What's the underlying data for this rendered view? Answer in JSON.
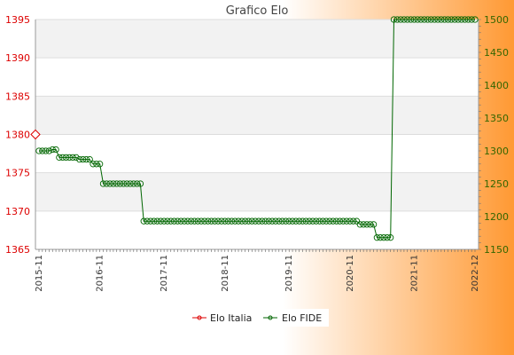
{
  "chart_data": {
    "type": "line",
    "title": "Grafico Elo",
    "colors": {
      "background_left": "#ffffff",
      "background_right": "#ff9933",
      "left_axis": "#dd0000",
      "right_axis": "#336600",
      "series_italia": "#dd0000",
      "series_fide": "#006600",
      "band": "#f2f2f2"
    },
    "y_left": {
      "ylim": [
        1365,
        1395
      ],
      "ticks": [
        1365,
        1370,
        1375,
        1380,
        1385,
        1390,
        1395
      ]
    },
    "y_right": {
      "ylim": [
        1150,
        1500
      ],
      "ticks": [
        1150,
        1200,
        1250,
        1300,
        1350,
        1400,
        1450,
        1500
      ]
    },
    "x_tick_label_first": "2015-11",
    "x_tick_label_last": "2022-12",
    "x_tick_labels_middle": [
      "2016-11",
      "2017-11",
      "2018-11",
      "2019-11",
      "2020-11",
      "2021-11"
    ],
    "legend": {
      "position": "bottom-center",
      "items": [
        "Elo Italia",
        "Elo FIDE"
      ]
    },
    "series": [
      {
        "name": "Elo Italia",
        "axis": "left",
        "values": [
          1380
        ]
      },
      {
        "name": "Elo FIDE",
        "axis": "right",
        "segments": [
          [
            4,
            1300
          ],
          [
            2,
            1302
          ],
          [
            6,
            1290
          ],
          [
            4,
            1287
          ],
          [
            3,
            1280
          ],
          [
            12,
            1250
          ],
          [
            64,
            1193
          ],
          [
            5,
            1188
          ],
          [
            5,
            1168
          ],
          [
            25,
            1500
          ]
        ]
      }
    ]
  }
}
